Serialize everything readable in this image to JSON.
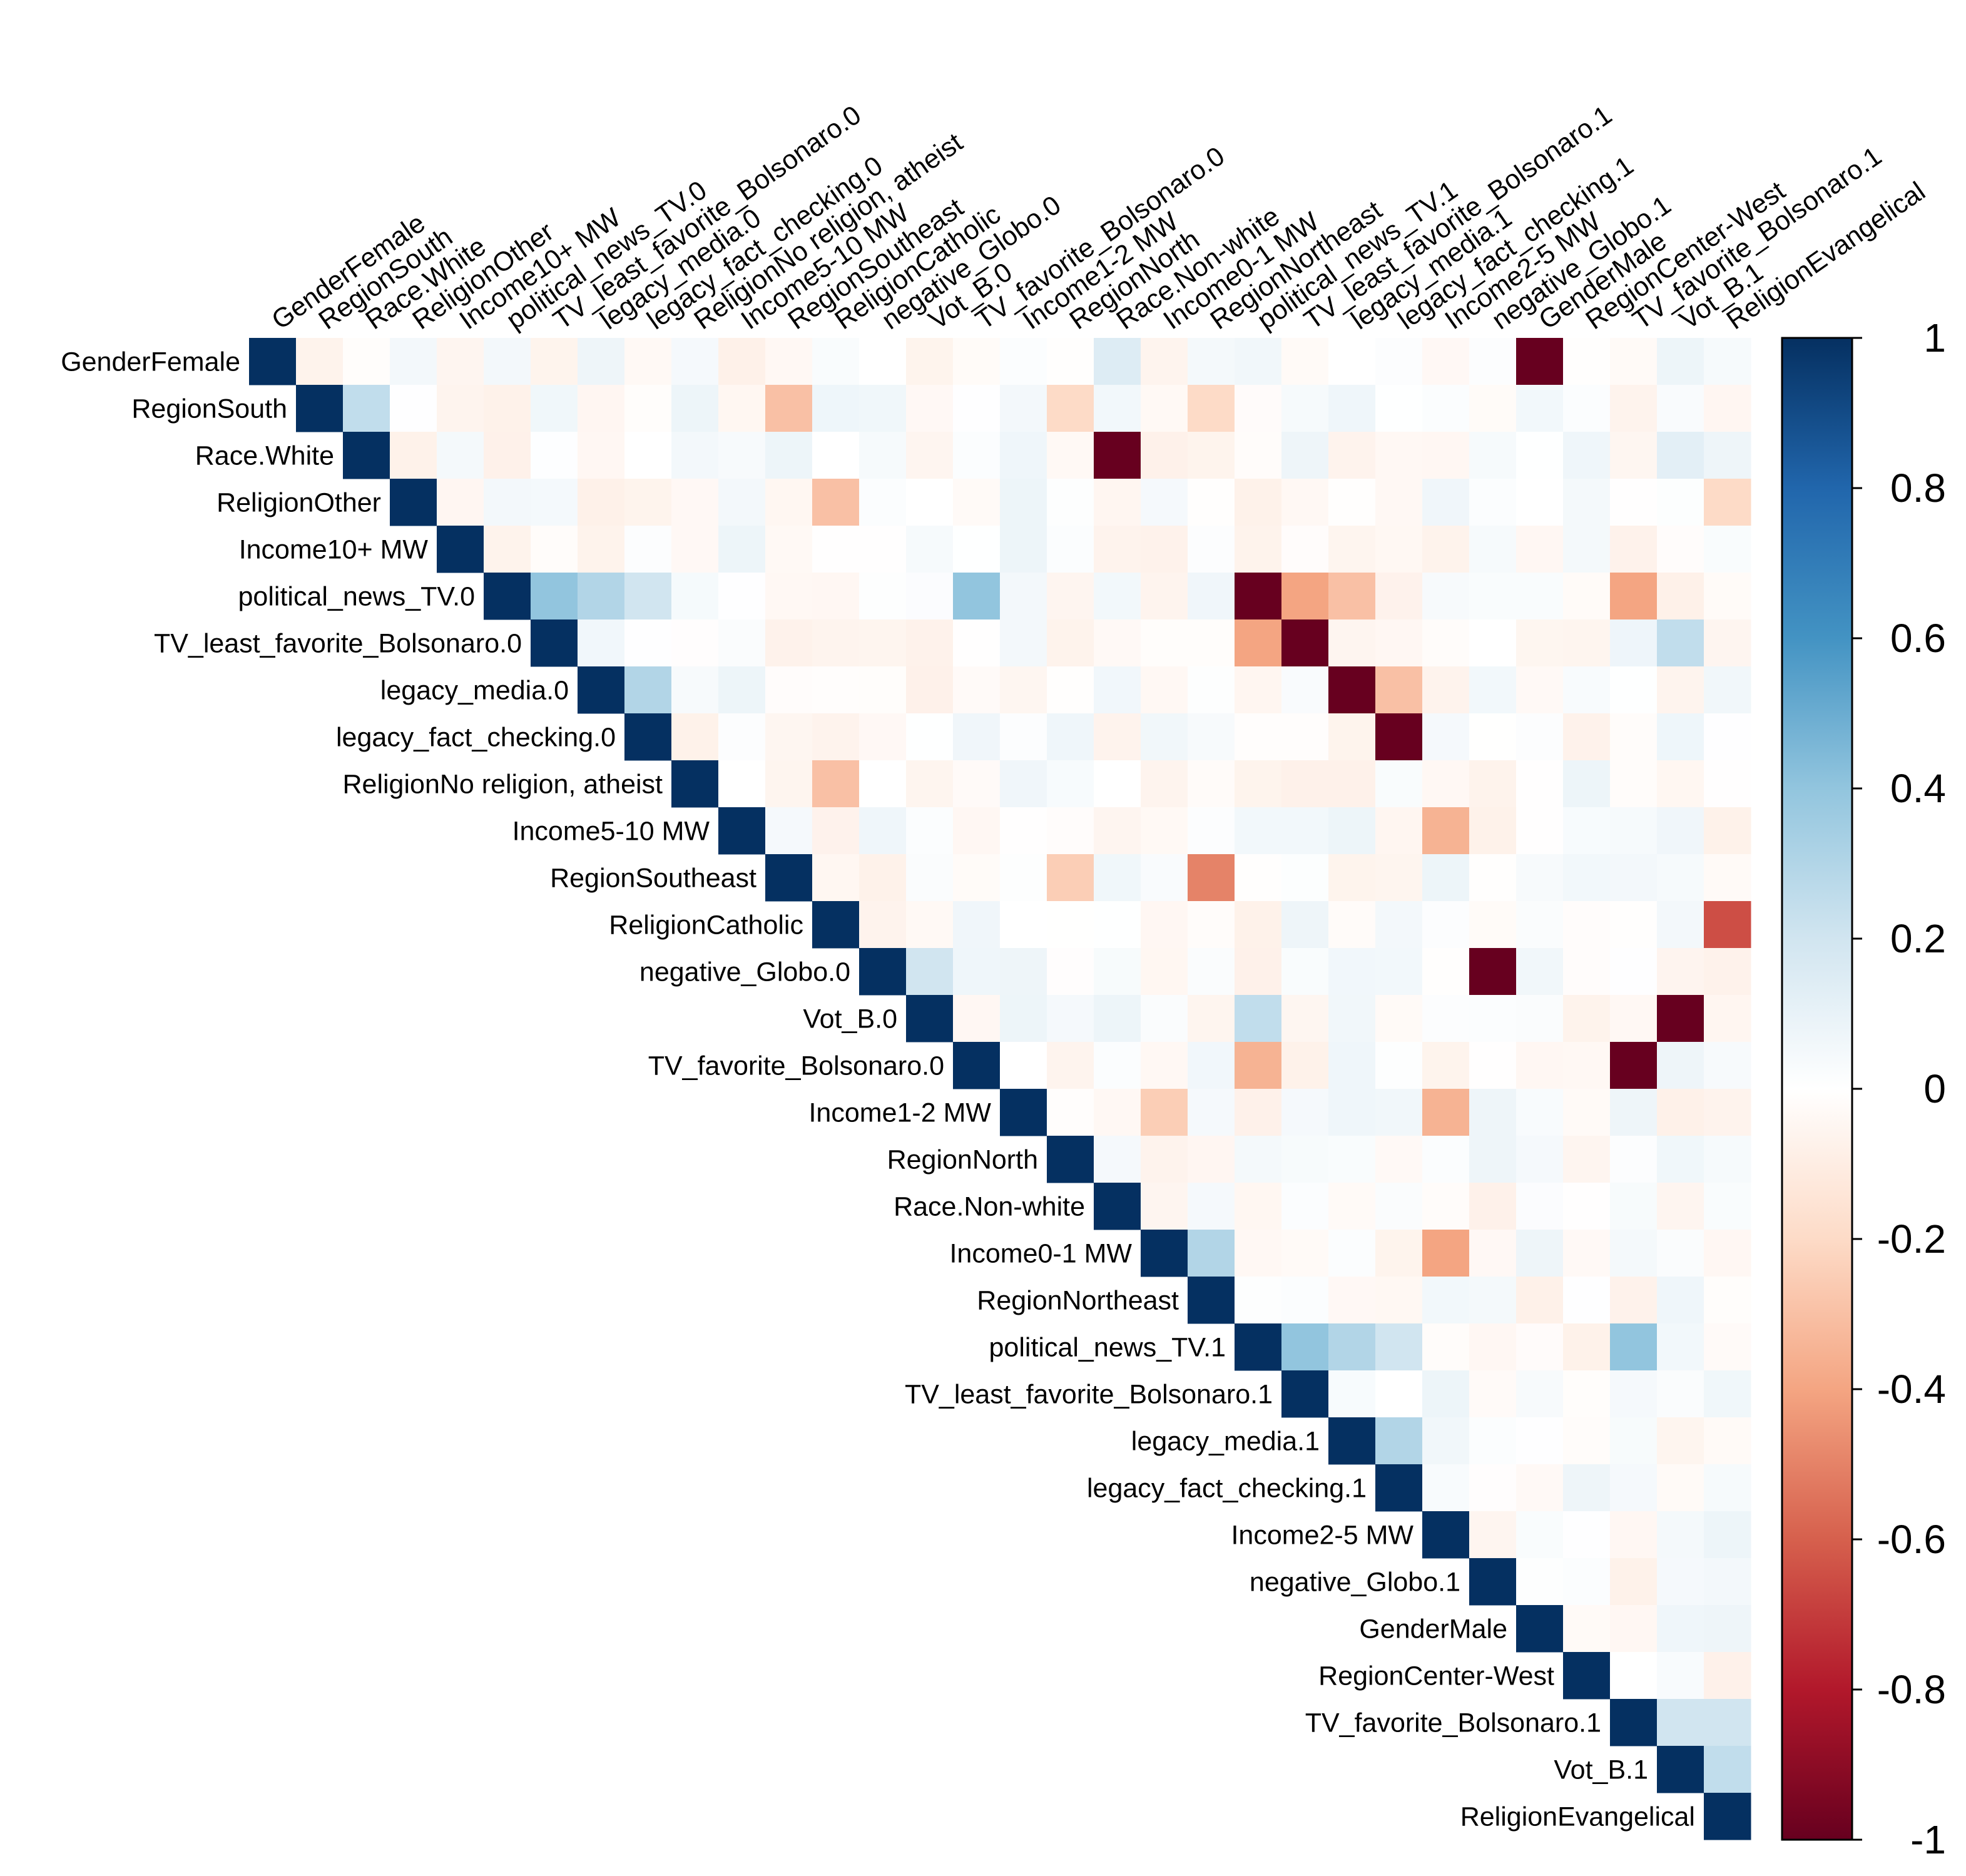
{
  "chart_data": {
    "type": "heatmap",
    "title": "",
    "layout": "upper-triangle",
    "variables": [
      "GenderFemale",
      "RegionSouth",
      "Race.White",
      "ReligionOther",
      "Income10+ MW",
      "political_news_TV.0",
      "TV_least_favorite_Bolsonaro.0",
      "legacy_media.0",
      "legacy_fact_checking.0",
      "ReligionNo religion, atheist",
      "Income5-10 MW",
      "RegionSoutheast",
      "ReligionCatholic",
      "negative_Globo.0",
      "Vot_B.0",
      "TV_favorite_Bolsonaro.0",
      "Income1-2 MW",
      "RegionNorth",
      "Race.Non-white",
      "Income0-1 MW",
      "RegionNortheast",
      "political_news_TV.1",
      "TV_least_favorite_Bolsonaro.1",
      "legacy_media.1",
      "legacy_fact_checking.1",
      "Income2-5 MW",
      "negative_Globo.1",
      "GenderMale",
      "RegionCenter-West",
      "TV_favorite_Bolsonaro.1",
      "Vot_B.1",
      "ReligionEvangelical"
    ],
    "notable_correlations": [
      {
        "row": "GenderFemale",
        "col": "GenderMale",
        "value": -1.0
      },
      {
        "row": "GenderFemale",
        "col": "Race.Non-white",
        "value": 0.15
      },
      {
        "row": "RegionSouth",
        "col": "Race.White",
        "value": 0.25
      },
      {
        "row": "RegionSouth",
        "col": "RegionSoutheast",
        "value": -0.3
      },
      {
        "row": "RegionSouth",
        "col": "RegionNorth",
        "value": -0.2
      },
      {
        "row": "RegionSouth",
        "col": "RegionNortheast",
        "value": -0.2
      },
      {
        "row": "Race.White",
        "col": "Race.Non-white",
        "value": -1.0
      },
      {
        "row": "Race.White",
        "col": "Vot_B.1",
        "value": 0.12
      },
      {
        "row": "ReligionOther",
        "col": "ReligionCatholic",
        "value": -0.3
      },
      {
        "row": "ReligionOther",
        "col": "ReligionEvangelical",
        "value": -0.2
      },
      {
        "row": "political_news_TV.0",
        "col": "TV_least_favorite_Bolsonaro.0",
        "value": 0.4
      },
      {
        "row": "political_news_TV.0",
        "col": "legacy_media.0",
        "value": 0.3
      },
      {
        "row": "political_news_TV.0",
        "col": "legacy_fact_checking.0",
        "value": 0.2
      },
      {
        "row": "political_news_TV.0",
        "col": "TV_favorite_Bolsonaro.0",
        "value": 0.4
      },
      {
        "row": "political_news_TV.0",
        "col": "political_news_TV.1",
        "value": -1.0
      },
      {
        "row": "political_news_TV.0",
        "col": "TV_least_favorite_Bolsonaro.1",
        "value": -0.4
      },
      {
        "row": "political_news_TV.0",
        "col": "legacy_media.1",
        "value": -0.3
      },
      {
        "row": "political_news_TV.0",
        "col": "TV_favorite_Bolsonaro.1",
        "value": -0.4
      },
      {
        "row": "TV_least_favorite_Bolsonaro.0",
        "col": "TV_least_favorite_Bolsonaro.1",
        "value": -1.0
      },
      {
        "row": "TV_least_favorite_Bolsonaro.0",
        "col": "political_news_TV.1",
        "value": -0.4
      },
      {
        "row": "TV_least_favorite_Bolsonaro.0",
        "col": "Vot_B.1",
        "value": 0.25
      },
      {
        "row": "legacy_media.0",
        "col": "legacy_fact_checking.0",
        "value": 0.3
      },
      {
        "row": "legacy_media.0",
        "col": "legacy_media.1",
        "value": -1.0
      },
      {
        "row": "legacy_media.0",
        "col": "legacy_fact_checking.1",
        "value": -0.3
      },
      {
        "row": "legacy_fact_checking.0",
        "col": "legacy_fact_checking.1",
        "value": -1.0
      },
      {
        "row": "ReligionNo religion, atheist",
        "col": "ReligionCatholic",
        "value": -0.3
      },
      {
        "row": "Income5-10 MW",
        "col": "Income2-5 MW",
        "value": -0.35
      },
      {
        "row": "RegionSoutheast",
        "col": "RegionNortheast",
        "value": -0.5
      },
      {
        "row": "RegionSoutheast",
        "col": "RegionNorth",
        "value": -0.25
      },
      {
        "row": "ReligionCatholic",
        "col": "ReligionEvangelical",
        "value": -0.65
      },
      {
        "row": "negative_Globo.0",
        "col": "negative_Globo.1",
        "value": -1.0
      },
      {
        "row": "negative_Globo.0",
        "col": "Vot_B.0",
        "value": 0.2
      },
      {
        "row": "Vot_B.0",
        "col": "Vot_B.1",
        "value": -1.0
      },
      {
        "row": "Vot_B.0",
        "col": "political_news_TV.1",
        "value": 0.25
      },
      {
        "row": "TV_favorite_Bolsonaro.0",
        "col": "TV_favorite_Bolsonaro.1",
        "value": -1.0
      },
      {
        "row": "TV_favorite_Bolsonaro.0",
        "col": "political_news_TV.1",
        "value": -0.35
      },
      {
        "row": "Income1-2 MW",
        "col": "Income0-1 MW",
        "value": -0.25
      },
      {
        "row": "Income1-2 MW",
        "col": "Income2-5 MW",
        "value": -0.35
      },
      {
        "row": "Income0-1 MW",
        "col": "RegionNortheast",
        "value": 0.3
      },
      {
        "row": "Income0-1 MW",
        "col": "Income2-5 MW",
        "value": -0.4
      },
      {
        "row": "political_news_TV.1",
        "col": "TV_least_favorite_Bolsonaro.1",
        "value": 0.4
      },
      {
        "row": "political_news_TV.1",
        "col": "legacy_media.1",
        "value": 0.3
      },
      {
        "row": "political_news_TV.1",
        "col": "legacy_fact_checking.1",
        "value": 0.2
      },
      {
        "row": "political_news_TV.1",
        "col": "TV_favorite_Bolsonaro.1",
        "value": 0.4
      },
      {
        "row": "legacy_media.1",
        "col": "legacy_fact_checking.1",
        "value": 0.3
      },
      {
        "row": "TV_favorite_Bolsonaro.1",
        "col": "Vot_B.1",
        "value": 0.2
      },
      {
        "row": "TV_favorite_Bolsonaro.1",
        "col": "ReligionEvangelical",
        "value": 0.2
      },
      {
        "row": "Vot_B.1",
        "col": "ReligionEvangelical",
        "value": 0.25
      }
    ],
    "colorbar": {
      "min": -1,
      "max": 1,
      "ticks": [
        "1",
        "0.8",
        "0.6",
        "0.4",
        "0.2",
        "0",
        "-0.2",
        "-0.4",
        "-0.6",
        "-0.8",
        "-1"
      ],
      "palette": [
        "#67001F",
        "#B2182B",
        "#D6604D",
        "#F4A582",
        "#FDDBC7",
        "#FFFFFF",
        "#D1E5F0",
        "#92C5DE",
        "#4393C3",
        "#2166AC",
        "#053061"
      ]
    },
    "legend_position": "right"
  }
}
